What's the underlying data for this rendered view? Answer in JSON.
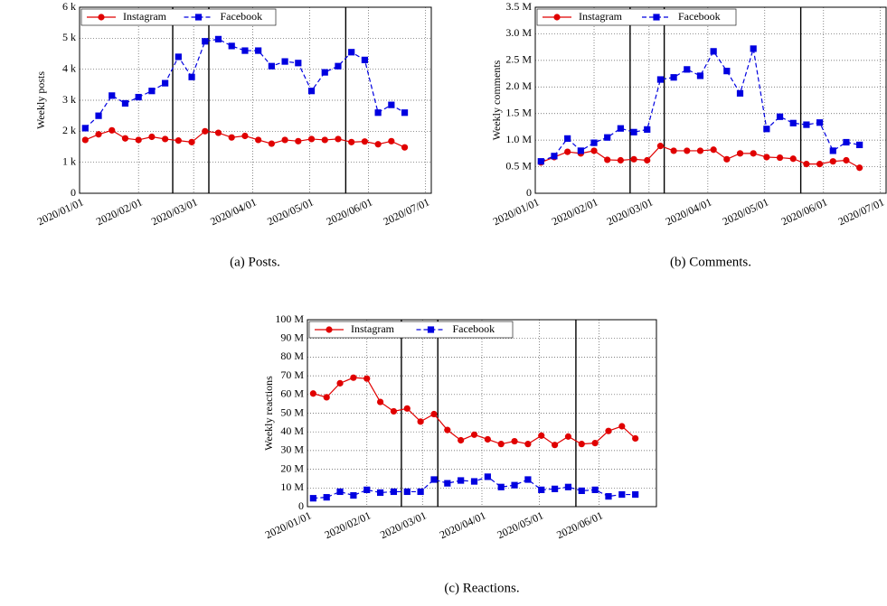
{
  "chart_data": [
    {
      "type": "line",
      "caption": "(a) Posts.",
      "ylabel": "Weekly posts",
      "x": [
        "2020/01/04",
        "2020/01/11",
        "2020/01/18",
        "2020/01/25",
        "2020/02/01",
        "2020/02/08",
        "2020/02/15",
        "2020/02/22",
        "2020/02/29",
        "2020/03/07",
        "2020/03/14",
        "2020/03/21",
        "2020/03/28",
        "2020/04/04",
        "2020/04/11",
        "2020/04/18",
        "2020/04/25",
        "2020/05/02",
        "2020/05/09",
        "2020/05/16",
        "2020/05/23",
        "2020/05/30",
        "2020/06/06",
        "2020/06/13",
        "2020/06/20"
      ],
      "series": [
        {
          "name": "Instagram",
          "color": "#e00000",
          "marker": "circle",
          "dashed": false,
          "values": [
            1.72,
            1.9,
            2.03,
            1.77,
            1.72,
            1.82,
            1.75,
            1.7,
            1.65,
            2.0,
            1.95,
            1.8,
            1.85,
            1.72,
            1.6,
            1.72,
            1.68,
            1.75,
            1.72,
            1.75,
            1.65,
            1.67,
            1.58,
            1.68,
            1.48
          ]
        },
        {
          "name": "Facebook",
          "color": "#0000e0",
          "marker": "square",
          "dashed": true,
          "values": [
            2.1,
            2.5,
            3.15,
            2.9,
            3.1,
            3.3,
            3.55,
            4.4,
            3.75,
            4.9,
            4.97,
            4.75,
            4.6,
            4.6,
            4.1,
            4.25,
            4.2,
            3.3,
            3.9,
            4.1,
            4.55,
            4.3,
            2.6,
            2.85,
            2.6
          ]
        }
      ],
      "xlim": [
        "2020/01/01",
        "2020/07/04"
      ],
      "xticks": [
        "2020/01/01",
        "2020/02/01",
        "2020/03/01",
        "2020/04/01",
        "2020/05/01",
        "2020/06/01",
        "2020/07/01"
      ],
      "ylim": [
        0,
        6
      ],
      "yticks": [
        0,
        {
          "value": 1,
          "label": "1 k"
        },
        {
          "value": 2,
          "label": "2 k"
        },
        {
          "value": 3,
          "label": "3 k"
        },
        {
          "value": 4,
          "label": "4 k"
        },
        {
          "value": 5,
          "label": "5 k"
        },
        {
          "value": 6,
          "label": "6 k"
        }
      ],
      "event_dates": [
        "2020/02/19",
        "2020/03/09",
        "2020/05/20"
      ],
      "grid": true,
      "legend": "top-left"
    },
    {
      "type": "line",
      "caption": "(b) Comments.",
      "ylabel": "Weekly comments",
      "x": [
        "2020/01/04",
        "2020/01/11",
        "2020/01/18",
        "2020/01/25",
        "2020/02/01",
        "2020/02/08",
        "2020/02/15",
        "2020/02/22",
        "2020/02/29",
        "2020/03/07",
        "2020/03/14",
        "2020/03/21",
        "2020/03/28",
        "2020/04/04",
        "2020/04/11",
        "2020/04/18",
        "2020/04/25",
        "2020/05/02",
        "2020/05/09",
        "2020/05/16",
        "2020/05/23",
        "2020/05/30",
        "2020/06/06",
        "2020/06/13",
        "2020/06/20"
      ],
      "series": [
        {
          "name": "Instagram",
          "color": "#e00000",
          "marker": "circle",
          "dashed": false,
          "values": [
            0.58,
            0.68,
            0.78,
            0.75,
            0.8,
            0.63,
            0.62,
            0.64,
            0.62,
            0.89,
            0.8,
            0.8,
            0.8,
            0.82,
            0.64,
            0.75,
            0.75,
            0.68,
            0.67,
            0.65,
            0.55,
            0.55,
            0.6,
            0.62,
            0.48
          ]
        },
        {
          "name": "Facebook",
          "color": "#0000e0",
          "marker": "square",
          "dashed": true,
          "values": [
            0.6,
            0.7,
            1.03,
            0.8,
            0.95,
            1.05,
            1.22,
            1.15,
            1.2,
            2.14,
            2.18,
            2.33,
            2.21,
            2.67,
            2.3,
            1.88,
            2.72,
            1.21,
            1.44,
            1.32,
            1.29,
            1.33,
            0.8,
            0.96,
            0.91
          ]
        }
      ],
      "xlim": [
        "2020/01/01",
        "2020/07/04"
      ],
      "xticks": [
        "2020/01/01",
        "2020/02/01",
        "2020/03/01",
        "2020/04/01",
        "2020/05/01",
        "2020/06/01",
        "2020/07/01"
      ],
      "ylim": [
        0,
        3.5
      ],
      "yticks": [
        0,
        {
          "value": 0.5,
          "label": "0.5 M"
        },
        {
          "value": 1,
          "label": "1.0 M"
        },
        {
          "value": 1.5,
          "label": "1.5 M"
        },
        {
          "value": 2,
          "label": "2.0 M"
        },
        {
          "value": 2.5,
          "label": "2.5 M"
        },
        {
          "value": 3,
          "label": "3.0 M"
        },
        {
          "value": 3.5,
          "label": "3.5 M"
        }
      ],
      "event_dates": [
        "2020/02/20",
        "2020/03/09",
        "2020/05/20"
      ],
      "grid": true,
      "legend": "top-left"
    },
    {
      "type": "line",
      "caption": "(c) Reactions.",
      "ylabel": "Weekly reactions",
      "x": [
        "2020/01/04",
        "2020/01/11",
        "2020/01/18",
        "2020/01/25",
        "2020/02/01",
        "2020/02/08",
        "2020/02/15",
        "2020/02/22",
        "2020/02/29",
        "2020/03/07",
        "2020/03/14",
        "2020/03/21",
        "2020/03/28",
        "2020/04/04",
        "2020/04/11",
        "2020/04/18",
        "2020/04/25",
        "2020/05/02",
        "2020/05/09",
        "2020/05/16",
        "2020/05/23",
        "2020/05/30",
        "2020/06/06",
        "2020/06/13",
        "2020/06/20"
      ],
      "series": [
        {
          "name": "Instagram",
          "color": "#e00000",
          "marker": "circle",
          "dashed": false,
          "values": [
            60.5,
            58.5,
            66,
            69,
            68.5,
            56,
            51,
            52.5,
            45.5,
            49.5,
            41,
            35.5,
            38.5,
            36,
            33.5,
            35,
            33.5,
            38,
            33,
            37.5,
            33.5,
            34,
            40.5,
            43,
            36.5
          ]
        },
        {
          "name": "Facebook",
          "color": "#0000e0",
          "marker": "square",
          "dashed": true,
          "values": [
            4.5,
            5,
            8,
            6,
            9,
            7.5,
            8,
            8,
            8,
            14.5,
            12.5,
            14,
            13.5,
            16,
            10.5,
            11.5,
            14.5,
            9,
            9.5,
            10.5,
            8.5,
            9,
            5.5,
            6.5,
            6.5
          ]
        }
      ],
      "xlim": [
        "2020/01/01",
        "2020/07/01"
      ],
      "xticks": [
        "2020/01/01",
        "2020/02/01",
        "2020/03/01",
        "2020/04/01",
        "2020/05/01",
        "2020/06/01"
      ],
      "ylim": [
        0,
        100
      ],
      "yticks": [
        0,
        {
          "value": 10,
          "label": "10 M"
        },
        {
          "value": 20,
          "label": "20 M"
        },
        {
          "value": 30,
          "label": "30 M"
        },
        {
          "value": 40,
          "label": "40 M"
        },
        {
          "value": 50,
          "label": "50 M"
        },
        {
          "value": 60,
          "label": "60 M"
        },
        {
          "value": 70,
          "label": "70 M"
        },
        {
          "value": 80,
          "label": "80 M"
        },
        {
          "value": 90,
          "label": "90 M"
        },
        {
          "value": 100,
          "label": "100 M"
        }
      ],
      "event_dates": [
        "2020/02/19",
        "2020/03/09",
        "2020/05/20"
      ],
      "grid": true,
      "legend": "top-left"
    }
  ]
}
